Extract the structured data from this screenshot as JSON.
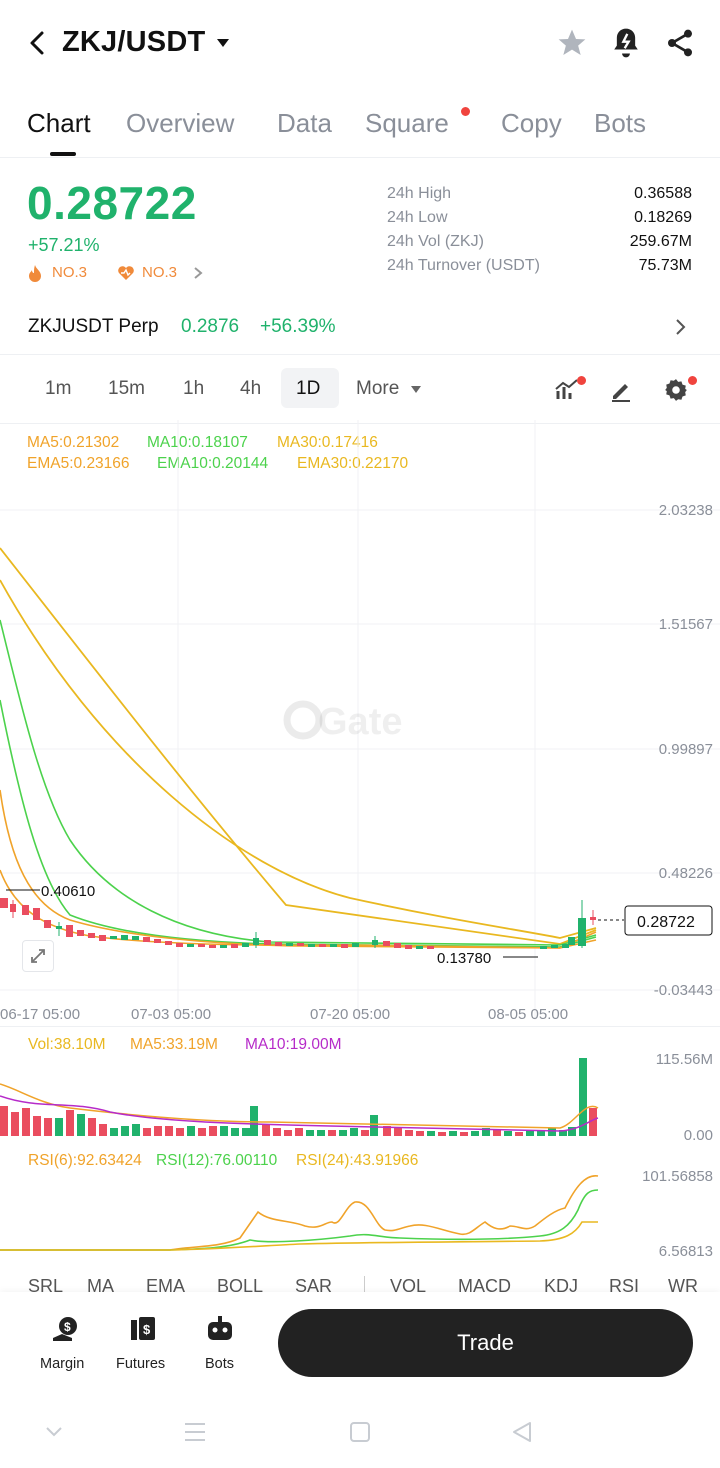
{
  "header": {
    "pair": "ZKJ/USDT",
    "icons": [
      "back-arrow-icon",
      "caret-down-icon",
      "star-icon",
      "alert-bell-icon",
      "share-icon"
    ]
  },
  "tabs": [
    {
      "label": "Chart",
      "active": true
    },
    {
      "label": "Overview"
    },
    {
      "label": "Data"
    },
    {
      "label": "Square",
      "badge": true
    },
    {
      "label": "Copy"
    },
    {
      "label": "Bots"
    }
  ],
  "ticker": {
    "price": "0.28722",
    "change": "+57.21%",
    "rank1": "NO.3",
    "rank2": "NO.3",
    "color_up": "#20b26c"
  },
  "stats": [
    {
      "label": "24h High",
      "value": "0.36588"
    },
    {
      "label": "24h Low",
      "value": "0.18269"
    },
    {
      "label": "24h Vol (ZKJ)",
      "value": "259.67M"
    },
    {
      "label": "24h Turnover (USDT)",
      "value": "75.73M"
    }
  ],
  "perp": {
    "name": "ZKJUSDT Perp",
    "price": "0.2876",
    "change": "+56.39%"
  },
  "timeframes": [
    "1m",
    "15m",
    "1h",
    "4h",
    "1D",
    "More"
  ],
  "timeframe_active": "1D",
  "indicators": {
    "ma5": "MA5:0.21302",
    "ma10": "MA10:0.18107",
    "ma30": "MA30:0.17416",
    "ema5": "EMA5:0.23166",
    "ema10": "EMA10:0.20144",
    "ema30": "EMA30:0.22170"
  },
  "chart_data": {
    "type": "candlestick",
    "watermark": "Gate",
    "y_ticks": [
      "2.03238",
      "1.51567",
      "0.99897",
      "0.48226",
      "-0.03443"
    ],
    "x_ticks": [
      "06-17 05:00",
      "07-03 05:00",
      "07-20 05:00",
      "08-05 05:00"
    ],
    "high_marker": "0.40610",
    "low_marker": "0.13780",
    "last_price": "0.28722",
    "ylim": [
      -0.03443,
      2.03238
    ]
  },
  "volume": {
    "vol": "Vol:38.10M",
    "ma5": "MA5:33.19M",
    "ma10": "MA10:19.00M",
    "y_ticks": [
      "115.56M",
      "0.00"
    ]
  },
  "rsi": {
    "rsi6": "RSI(6):92.63424",
    "rsi12": "RSI(12):76.00110",
    "rsi24": "RSI(24):43.91966",
    "y_ticks": [
      "101.56858",
      "6.56813"
    ]
  },
  "indicator_tabs": [
    "SRL",
    "MA",
    "EMA",
    "BOLL",
    "SAR",
    "VOL",
    "MACD",
    "KDJ",
    "RSI",
    "WR"
  ],
  "bottom_nav": [
    {
      "label": "Margin",
      "icon": "margin-icon"
    },
    {
      "label": "Futures",
      "icon": "futures-icon"
    },
    {
      "label": "Bots",
      "icon": "bots-icon"
    }
  ],
  "trade_label": "Trade",
  "colors": {
    "green": "#20b26c",
    "red": "#ea4d5f",
    "ma5": "#f0a32a",
    "ma10": "#4cd24c",
    "ma30": "#e9b820",
    "vol_ma10": "#b62bc9"
  }
}
